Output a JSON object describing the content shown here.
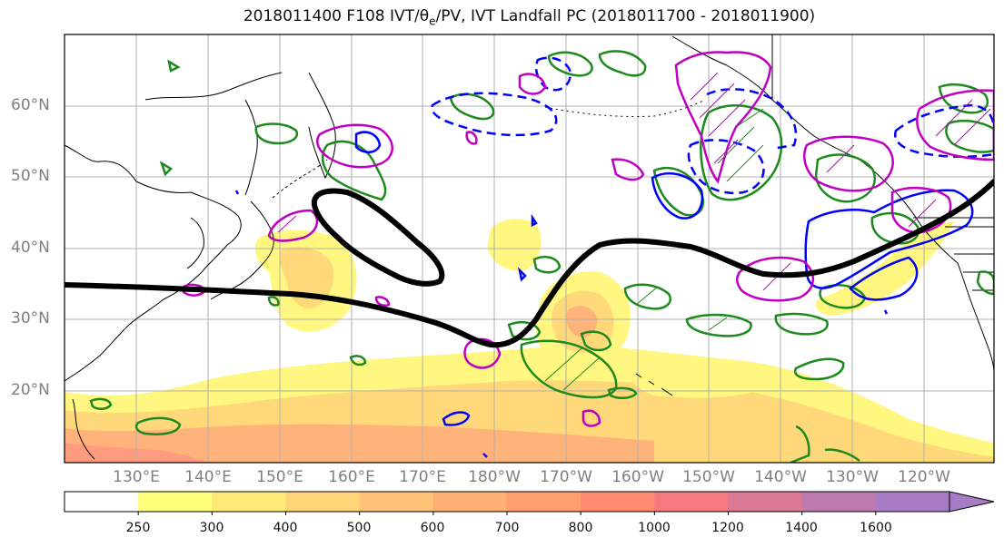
{
  "title": "2018011400 F108 IVT/θe/PV, IVT Landfall PC (2018011700 - 2018011900)",
  "title_parts": {
    "pre": "2018011400 F108 IVT/",
    "theta": "θ",
    "sub": "e",
    "post": "/PV, IVT Landfall PC (2018011700 - 2018011900)"
  },
  "latitude_labels": [
    "60°N",
    "50°N",
    "40°N",
    "30°N",
    "20°N"
  ],
  "longitude_labels": [
    "130°E",
    "140°E",
    "150°E",
    "160°E",
    "170°E",
    "180°W",
    "170°W",
    "160°W",
    "150°W",
    "140°W",
    "130°W",
    "120°W"
  ],
  "colorbar": {
    "levels": [
      "250",
      "300",
      "400",
      "500",
      "600",
      "700",
      "800",
      "1000",
      "1200",
      "1400",
      "1600"
    ],
    "colors": [
      "#ffffff",
      "#ffff7a",
      "#ffea78",
      "#ffd578",
      "#ffc277",
      "#ffb072",
      "#ff9f6e",
      "#ff8a70",
      "#f47a80",
      "#db7893",
      "#bd7aaf",
      "#a87cc5"
    ],
    "extend": "max"
  },
  "colors": {
    "ivt_low": "#fff780",
    "ivt_mid": "#ffd87a",
    "ivt_high": "#ffb37a",
    "ivt_max": "#ff9c80",
    "pv_contour": "#1e8a1e",
    "theta_neg": "#0000ff",
    "theta_pos": "#c000c0",
    "pc_line": "#000000",
    "grid": "#b0b0b0",
    "coast": "#000000"
  }
}
